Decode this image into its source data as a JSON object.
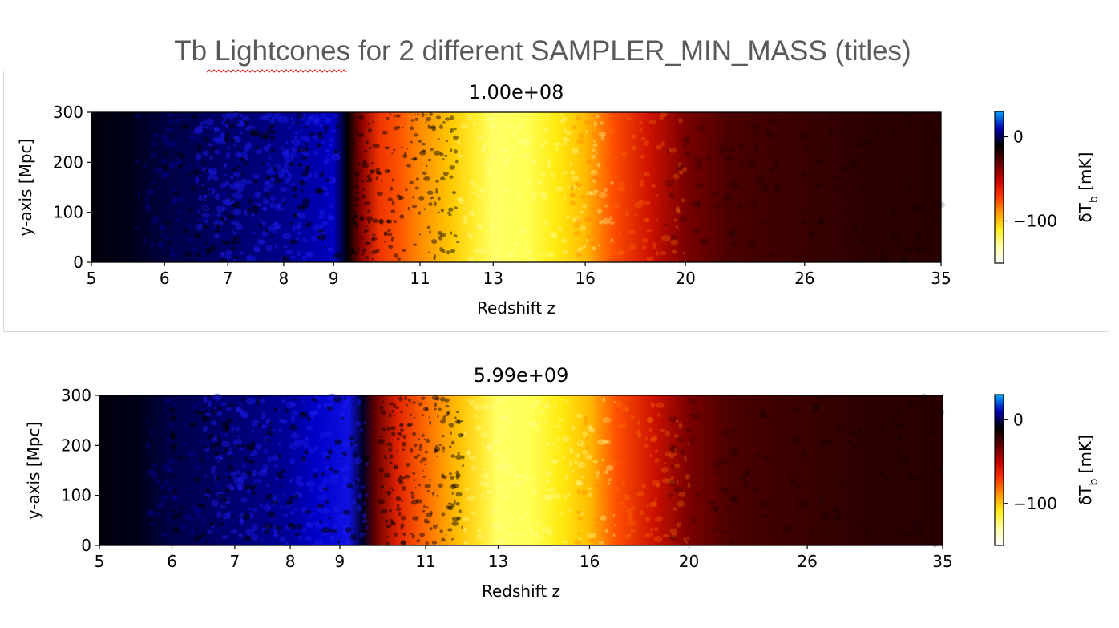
{
  "slide": {
    "title": "Tb Lightcones for 2 different SAMPLER_MIN_MASS (titles)"
  },
  "colors": {
    "colormap": [
      "#00a8ff",
      "#0000b0",
      "#000000",
      "#5a0000",
      "#c00000",
      "#ff3300",
      "#ff9900",
      "#ffee22",
      "#ffffaa",
      "#ffffff"
    ],
    "spellcheck_underline": "#e02020"
  },
  "chart_data": [
    {
      "type": "heatmap",
      "title": "1.00e+08",
      "xlabel": "Redshift z",
      "ylabel": "y-axis [Mpc]",
      "x_scale": "log(1+z)",
      "xlim": [
        5,
        35
      ],
      "ylim": [
        0,
        300
      ],
      "x_ticks": [
        5,
        6,
        7,
        8,
        9,
        11,
        13,
        16,
        20,
        26,
        35
      ],
      "y_ticks": [
        0,
        100,
        200,
        300
      ],
      "colorbar": {
        "label": "δT",
        "label_subscript": "b",
        "label_unit": " [mK]",
        "ticks": [
          0,
          -100
        ],
        "tick_labels": [
          "0",
          "−100"
        ],
        "range": [
          -150,
          30
        ]
      },
      "profile": {
        "z": [
          5,
          5.5,
          6,
          7,
          8,
          9,
          9.3,
          9.6,
          10,
          10.5,
          11,
          11.8,
          12.5,
          13,
          14,
          15,
          16,
          17,
          18.5,
          20,
          22,
          26,
          30,
          35
        ],
        "color": [
          "#00000c",
          "#000018",
          "#000040",
          "#00006a",
          "#00008a",
          "#0000c0",
          "#000000",
          "#8a0000",
          "#ee3300",
          "#ff5500",
          "#ff8c00",
          "#ffc800",
          "#ffee30",
          "#ffff66",
          "#ffff55",
          "#ffea10",
          "#ffbb00",
          "#ff5000",
          "#cc1100",
          "#7a0000",
          "#4a0000",
          "#380000",
          "#2c0000",
          "#280000"
        ]
      }
    },
    {
      "type": "heatmap",
      "title": "5.99e+09",
      "xlabel": "Redshift z",
      "ylabel": "y-axis [Mpc]",
      "x_scale": "log(1+z)",
      "xlim": [
        5,
        35
      ],
      "ylim": [
        0,
        300
      ],
      "x_ticks": [
        5,
        6,
        7,
        8,
        9,
        11,
        13,
        16,
        20,
        26,
        35
      ],
      "y_ticks": [
        0,
        100,
        200,
        300
      ],
      "colorbar": {
        "label": "δT",
        "label_subscript": "b",
        "label_unit": " [mK]",
        "ticks": [
          0,
          -100
        ],
        "tick_labels": [
          "0",
          "−100"
        ],
        "range": [
          -150,
          30
        ]
      },
      "profile": {
        "z": [
          5,
          5.5,
          6,
          7,
          8,
          8.5,
          9.2,
          9.5,
          9.8,
          10.3,
          11,
          11.8,
          12.5,
          13,
          14,
          15,
          16,
          17,
          18.5,
          20,
          22,
          26,
          30,
          35
        ],
        "color": [
          "#00000c",
          "#000018",
          "#000048",
          "#00006e",
          "#00009a",
          "#0000c8",
          "#1010e0",
          "#000022",
          "#6a0000",
          "#e02200",
          "#ff6a00",
          "#ffbb00",
          "#ffe830",
          "#ffff66",
          "#ffff55",
          "#ffea10",
          "#ffbb00",
          "#ff5000",
          "#cc1100",
          "#7a0000",
          "#4a0000",
          "#380000",
          "#2c0000",
          "#280000"
        ]
      }
    }
  ]
}
